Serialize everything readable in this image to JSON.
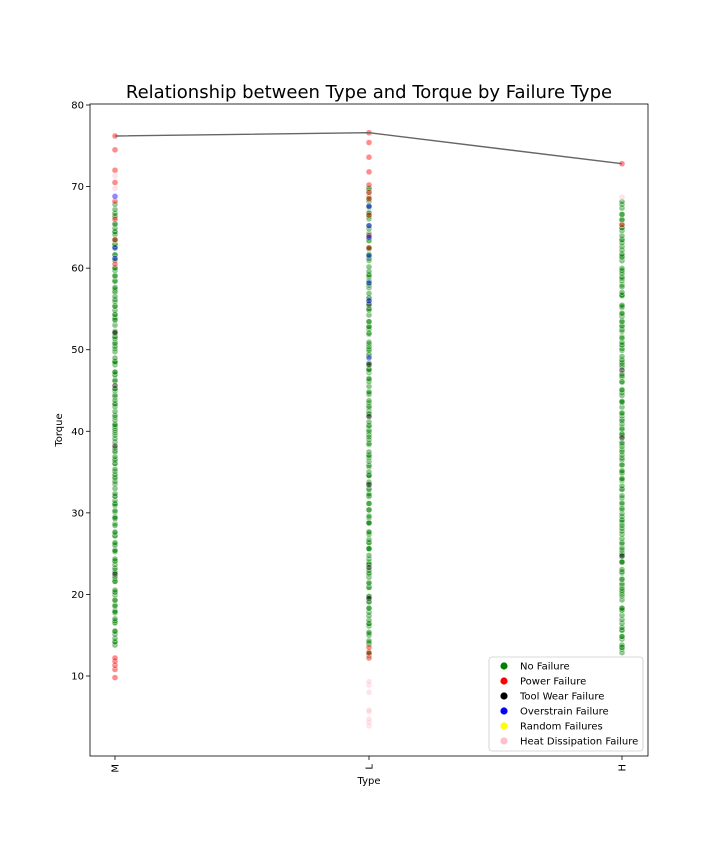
{
  "chart_data": {
    "type": "scatter",
    "title": "Relationship between Type and Torque by Failure Type",
    "xlabel": "Type",
    "ylabel": "Torque",
    "categories": [
      "M",
      "L",
      "H"
    ],
    "ylim": [
      0,
      80
    ],
    "yticks": [
      10,
      20,
      30,
      40,
      50,
      60,
      70,
      80
    ],
    "grid": false,
    "legend_position": "lower-right",
    "series": [
      {
        "name": "No Failure",
        "color": "#008000",
        "ranges": [
          {
            "category": "M",
            "min": 13.8,
            "max": 67.5
          },
          {
            "category": "L",
            "min": 12.5,
            "max": 70.0
          },
          {
            "category": "H",
            "min": 12.8,
            "max": 68.0
          }
        ]
      },
      {
        "name": "Power Failure",
        "color": "#ff0000",
        "points": [
          {
            "x": "M",
            "y": 9.8
          },
          {
            "x": "M",
            "y": 10.8
          },
          {
            "x": "M",
            "y": 11.3
          },
          {
            "x": "M",
            "y": 11.8
          },
          {
            "x": "M",
            "y": 12.2
          },
          {
            "x": "M",
            "y": 60.5
          },
          {
            "x": "M",
            "y": 63.5
          },
          {
            "x": "M",
            "y": 66.0
          },
          {
            "x": "M",
            "y": 68.2
          },
          {
            "x": "L",
            "y": 12.2
          },
          {
            "x": "L",
            "y": 12.8
          },
          {
            "x": "L",
            "y": 13.5
          },
          {
            "x": "L",
            "y": 62.5
          },
          {
            "x": "L",
            "y": 64.0
          },
          {
            "x": "L",
            "y": 66.5
          },
          {
            "x": "L",
            "y": 68.5
          },
          {
            "x": "L",
            "y": 69.3
          },
          {
            "x": "L",
            "y": 70.2
          },
          {
            "x": "L",
            "y": 71.8
          },
          {
            "x": "L",
            "y": 73.6
          },
          {
            "x": "L",
            "y": 75.4
          },
          {
            "x": "L",
            "y": 76.6
          },
          {
            "x": "M",
            "y": 74.5
          },
          {
            "x": "M",
            "y": 76.2
          },
          {
            "x": "M",
            "y": 70.5
          },
          {
            "x": "M",
            "y": 72.0
          },
          {
            "x": "H",
            "y": 65.3
          },
          {
            "x": "H",
            "y": 72.8
          }
        ]
      },
      {
        "name": "Tool Wear Failure",
        "color": "#000000",
        "points": [
          {
            "x": "M",
            "y": 22.5
          },
          {
            "x": "M",
            "y": 38.2
          },
          {
            "x": "M",
            "y": 45.6
          },
          {
            "x": "M",
            "y": 52.1
          },
          {
            "x": "L",
            "y": 19.5
          },
          {
            "x": "L",
            "y": 23.3
          },
          {
            "x": "L",
            "y": 33.5
          },
          {
            "x": "L",
            "y": 41.8
          },
          {
            "x": "L",
            "y": 48.2
          },
          {
            "x": "L",
            "y": 55.6
          },
          {
            "x": "H",
            "y": 24.7
          },
          {
            "x": "H",
            "y": 39.2
          },
          {
            "x": "H",
            "y": 47.5
          }
        ]
      },
      {
        "name": "Overstrain Failure",
        "color": "#0000ff",
        "points": [
          {
            "x": "M",
            "y": 61.2
          },
          {
            "x": "M",
            "y": 62.5
          },
          {
            "x": "M",
            "y": 68.8
          },
          {
            "x": "L",
            "y": 49.0
          },
          {
            "x": "L",
            "y": 56.0
          },
          {
            "x": "L",
            "y": 58.2
          },
          {
            "x": "L",
            "y": 61.5
          },
          {
            "x": "L",
            "y": 63.8
          },
          {
            "x": "L",
            "y": 65.2
          },
          {
            "x": "L",
            "y": 67.6
          }
        ]
      },
      {
        "name": "Random Failures",
        "color": "#ffff00",
        "points": []
      },
      {
        "name": "Heat Dissipation Failure",
        "color": "#ffc0cb",
        "points": [
          {
            "x": "L",
            "y": 3.9
          },
          {
            "x": "L",
            "y": 4.3
          },
          {
            "x": "L",
            "y": 4.7
          },
          {
            "x": "L",
            "y": 5.6
          },
          {
            "x": "L",
            "y": 5.8
          },
          {
            "x": "L",
            "y": 8.0
          },
          {
            "x": "L",
            "y": 8.9
          },
          {
            "x": "L",
            "y": 9.3
          },
          {
            "x": "M",
            "y": 71.3
          },
          {
            "x": "M",
            "y": 69.8
          },
          {
            "x": "H",
            "y": 68.7
          }
        ]
      }
    ],
    "max_line": {
      "color": "#666666",
      "points": [
        {
          "x": "M",
          "y": 76.2
        },
        {
          "x": "L",
          "y": 76.6
        },
        {
          "x": "H",
          "y": 72.8
        }
      ]
    }
  }
}
